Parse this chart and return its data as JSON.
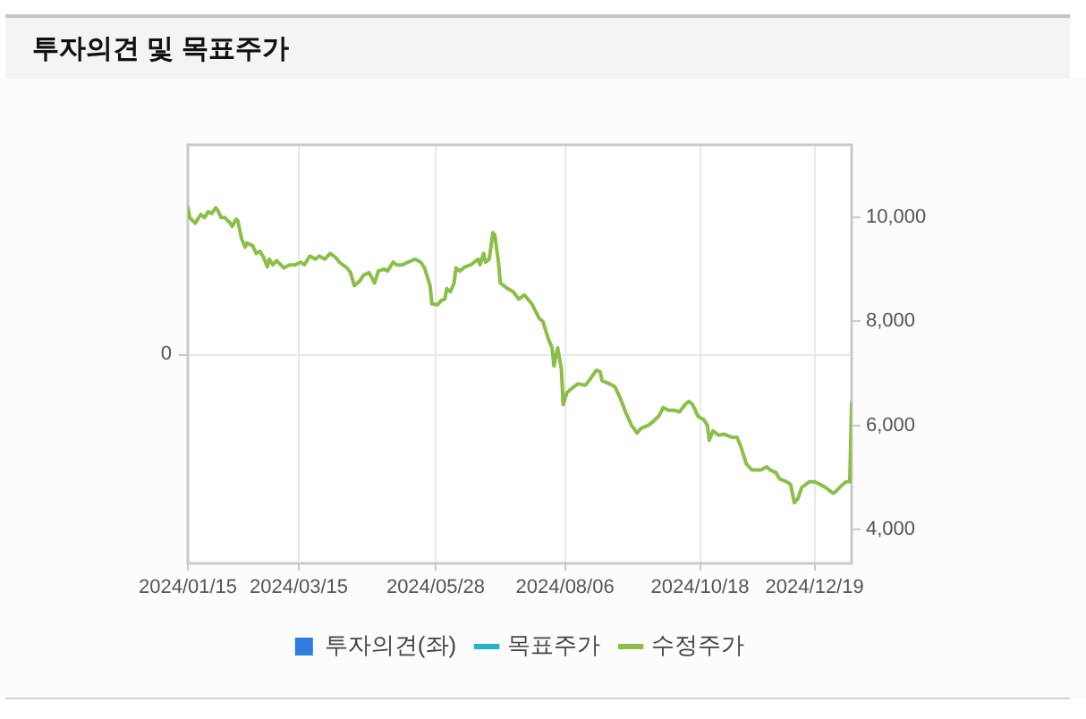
{
  "chart_data": {
    "type": "line",
    "title": "투자의견 및 목표주가",
    "xlim": [
      "2024-01-15",
      "2025-01-08"
    ],
    "xticks": [
      {
        "value": "2024-01-15",
        "label": "2024/01/15"
      },
      {
        "value": "2024-03-15",
        "label": "2024/03/15"
      },
      {
        "value": "2024-05-28",
        "label": "2024/05/28"
      },
      {
        "value": "2024-08-06",
        "label": "2024/08/06"
      },
      {
        "value": "2024-10-18",
        "label": "2024/10/18"
      },
      {
        "value": "2024-12-19",
        "label": "2024/12/19"
      }
    ],
    "y2lim": [
      3340,
      11400
    ],
    "y2ticks": [
      {
        "value": 4000,
        "label": "4,000"
      },
      {
        "value": 6000,
        "label": "6,000"
      },
      {
        "value": 8000,
        "label": "8,000"
      },
      {
        "value": 10000,
        "label": "10,000"
      }
    ],
    "annotations": [
      "0"
    ],
    "grid": true,
    "legend": "bottom",
    "marker": "none",
    "series": [
      {
        "name": "투자의견(좌)",
        "type": "bar",
        "color": "#2f7ddc"
      },
      {
        "name": "목표주가",
        "axis": "y2",
        "color": "#25b3c9"
      },
      {
        "name": "수정주가",
        "axis": "y2",
        "color": "#8bbf48",
        "x": [
          "2024-01-15",
          "2024-01-16",
          "2024-01-19",
          "2024-01-22",
          "2024-01-24",
          "2024-01-26",
          "2024-01-28",
          "2024-01-30",
          "2024-01-31",
          "2024-02-02",
          "2024-02-04",
          "2024-02-07",
          "2024-02-08",
          "2024-02-10",
          "2024-02-11",
          "2024-02-13",
          "2024-02-15",
          "2024-02-16",
          "2024-02-19",
          "2024-02-21",
          "2024-02-23",
          "2024-02-25",
          "2024-02-27",
          "2024-02-28",
          "2024-03-01",
          "2024-03-03",
          "2024-03-07",
          "2024-03-10",
          "2024-03-13",
          "2024-03-16",
          "2024-03-18",
          "2024-03-21",
          "2024-03-24",
          "2024-03-26",
          "2024-03-29",
          "2024-04-01",
          "2024-04-04",
          "2024-04-06",
          "2024-04-10",
          "2024-04-12",
          "2024-04-14",
          "2024-04-17",
          "2024-04-19",
          "2024-04-22",
          "2024-04-25",
          "2024-04-27",
          "2024-04-30",
          "2024-05-02",
          "2024-05-05",
          "2024-05-07",
          "2024-05-10",
          "2024-05-13",
          "2024-05-17",
          "2024-05-20",
          "2024-05-22",
          "2024-05-25",
          "2024-05-26",
          "2024-05-29",
          "2024-05-31",
          "2024-06-02",
          "2024-06-03",
          "2024-06-05",
          "2024-06-07",
          "2024-06-08",
          "2024-06-10",
          "2024-06-13",
          "2024-06-16",
          "2024-06-20",
          "2024-06-21",
          "2024-06-23",
          "2024-06-24",
          "2024-06-26",
          "2024-06-28",
          "2024-06-29",
          "2024-07-01",
          "2024-07-02",
          "2024-07-06",
          "2024-07-09",
          "2024-07-12",
          "2024-07-15",
          "2024-07-19",
          "2024-07-23",
          "2024-07-25",
          "2024-07-28",
          "2024-07-30",
          "2024-07-31",
          "2024-08-02",
          "2024-08-04",
          "2024-08-05",
          "2024-08-07",
          "2024-08-10",
          "2024-08-13",
          "2024-08-17",
          "2024-08-20",
          "2024-08-23",
          "2024-08-25",
          "2024-08-26",
          "2024-08-30",
          "2024-09-02",
          "2024-09-05",
          "2024-09-08",
          "2024-09-11",
          "2024-09-14",
          "2024-09-16",
          "2024-09-20",
          "2024-09-23",
          "2024-09-26",
          "2024-09-28",
          "2024-10-01",
          "2024-10-04",
          "2024-10-07",
          "2024-10-10",
          "2024-10-12",
          "2024-10-14",
          "2024-10-17",
          "2024-10-20",
          "2024-10-22",
          "2024-10-23",
          "2024-10-25",
          "2024-10-28",
          "2024-10-31",
          "2024-11-04",
          "2024-11-07",
          "2024-11-09",
          "2024-11-12",
          "2024-11-15",
          "2024-11-20",
          "2024-11-23",
          "2024-11-25",
          "2024-11-28",
          "2024-11-30",
          "2024-12-04",
          "2024-12-06",
          "2024-12-08",
          "2024-12-10",
          "2024-12-12",
          "2024-12-16",
          "2024-12-19",
          "2024-12-22",
          "2024-12-25",
          "2024-12-29",
          "2024-12-30",
          "2025-01-02",
          "2025-01-05",
          "2025-01-07",
          "2025-01-08"
        ],
        "values": [
          10200,
          10000,
          9890,
          10060,
          10000,
          10110,
          10080,
          10190,
          10150,
          10000,
          10000,
          9890,
          9830,
          9970,
          9940,
          9600,
          9430,
          9510,
          9460,
          9310,
          9350,
          9230,
          9050,
          9200,
          9090,
          9170,
          9030,
          9090,
          9090,
          9140,
          9090,
          9260,
          9200,
          9260,
          9200,
          9310,
          9230,
          9140,
          9030,
          8940,
          8690,
          8780,
          8890,
          8940,
          8740,
          8970,
          9010,
          8970,
          9140,
          9090,
          9090,
          9140,
          9200,
          9140,
          9030,
          8690,
          8340,
          8320,
          8400,
          8430,
          8630,
          8570,
          8740,
          9030,
          8970,
          9050,
          9090,
          9200,
          9090,
          9310,
          9140,
          9200,
          9710,
          9660,
          9140,
          8740,
          8630,
          8570,
          8430,
          8510,
          8340,
          8060,
          8000,
          7660,
          7490,
          7140,
          7490,
          7090,
          6400,
          6630,
          6720,
          6800,
          6770,
          6910,
          7060,
          7030,
          6860,
          6800,
          6740,
          6510,
          6230,
          6000,
          5850,
          5940,
          6000,
          6080,
          6190,
          6340,
          6290,
          6290,
          6260,
          6400,
          6460,
          6400,
          6170,
          6110,
          6000,
          5710,
          5890,
          5810,
          5830,
          5770,
          5770,
          5600,
          5260,
          5140,
          5140,
          5200,
          5140,
          5090,
          4970,
          4910,
          4860,
          4510,
          4590,
          4800,
          4910,
          4910,
          4860,
          4800,
          4690,
          4710,
          4820,
          4910,
          4910,
          6430
        ]
      }
    ]
  }
}
